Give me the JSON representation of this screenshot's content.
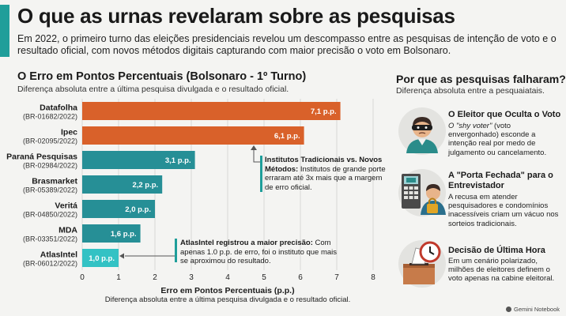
{
  "header": {
    "title": "O que as urnas revelaram sobre as pesquisas",
    "subtitle": "Em 2022, o primeiro turno das eleições presidenciais revelou um descompasso entre as pesquisas de intenção de voto e o resultado oficial, com novos métodos digitais capturando com maior precisão o voto em Bolsonaro."
  },
  "chart_data": {
    "type": "bar",
    "orientation": "horizontal",
    "title": "O Erro em Pontos Percentuais (Bolsonaro - 1º Turno)",
    "subtitle": "Diferença absoluta entre a última pesquisa divulgada e o resultado oficial.",
    "xlabel": "Erro em Pontos Percentuais (p.p.)",
    "xlabel_sub": "Diferença absoluta entre a última pesquisa divulgada e o resultado oficial.",
    "xlim": [
      0,
      8
    ],
    "xticks": [
      0,
      1,
      2,
      3,
      4,
      5,
      6,
      7,
      8
    ],
    "grid": true,
    "categories": [
      {
        "name": "Datafolha",
        "code": "(BR-01682/2022)",
        "value": 7.1,
        "label": "7,1 p.p."
      },
      {
        "name": "Ipec",
        "code": "(BR-02095/2022)",
        "value": 6.1,
        "label": "6,1 p.p."
      },
      {
        "name": "Paraná Pesquisas",
        "code": "(BR-02984/2022)",
        "value": 3.1,
        "label": "3,1 p.p."
      },
      {
        "name": "Brasmarket",
        "code": "(BR-05389/2022)",
        "value": 2.2,
        "label": "2,2 p.p."
      },
      {
        "name": "Veritá",
        "code": "(BR-04850/2022)",
        "value": 2.0,
        "label": "2,0 p.p."
      },
      {
        "name": "MDA",
        "code": "(BR-03351/2022)",
        "value": 1.6,
        "label": "1,6 p.p."
      },
      {
        "name": "AtlasIntel",
        "code": "(BR-06012/2022)",
        "value": 1.0,
        "label": "1,0 p.p."
      }
    ],
    "colors": [
      "#d9612a",
      "#d9612a",
      "#268f96",
      "#268f96",
      "#268f96",
      "#268f96",
      "#33c2c4"
    ],
    "annotations": [
      {
        "title": "Institutos Tradicionais vs. Novos Métodos:",
        "text": "Institutos de grande porte erraram até 3x mais que a margem de erro oficial."
      },
      {
        "title": "AtlasIntel registrou a maior precisão:",
        "text": "Com apenas 1.0 p.p. de erro, foi o instituto que mais se aproximou do resultado."
      }
    ]
  },
  "sidebar": {
    "title": "Por que as pesquisas falharam?",
    "subtitle": "Diferença absoluta entre a pesquaiatais.",
    "reasons": [
      {
        "icon": "masked-voter-icon",
        "title": "O Eleitor que Oculta o Voto",
        "text_quote": "O \"shy voter\"",
        "text": " (voto envergonhado) esconde a intenção real por medo de julgamento ou cancelamento."
      },
      {
        "icon": "intercom-door-icon",
        "title": "A \"Porta Fechada\" para o Entrevistador",
        "text": "A recusa em atender pesquisadores e condomínios inacessíveis criam um vácuo nos sorteios tradicionais."
      },
      {
        "icon": "ballot-clock-icon",
        "title": "Decisão de Última Hora",
        "text": "Em um cenário polarizado, milhões de eleitores definem o voto apenas na cabine eleitoral."
      }
    ]
  },
  "brand": "Gemini Notebook",
  "colors": {
    "accent": "#1f9e9a",
    "orange": "#d9612a",
    "teal": "#268f96",
    "light_teal": "#33c2c4"
  }
}
